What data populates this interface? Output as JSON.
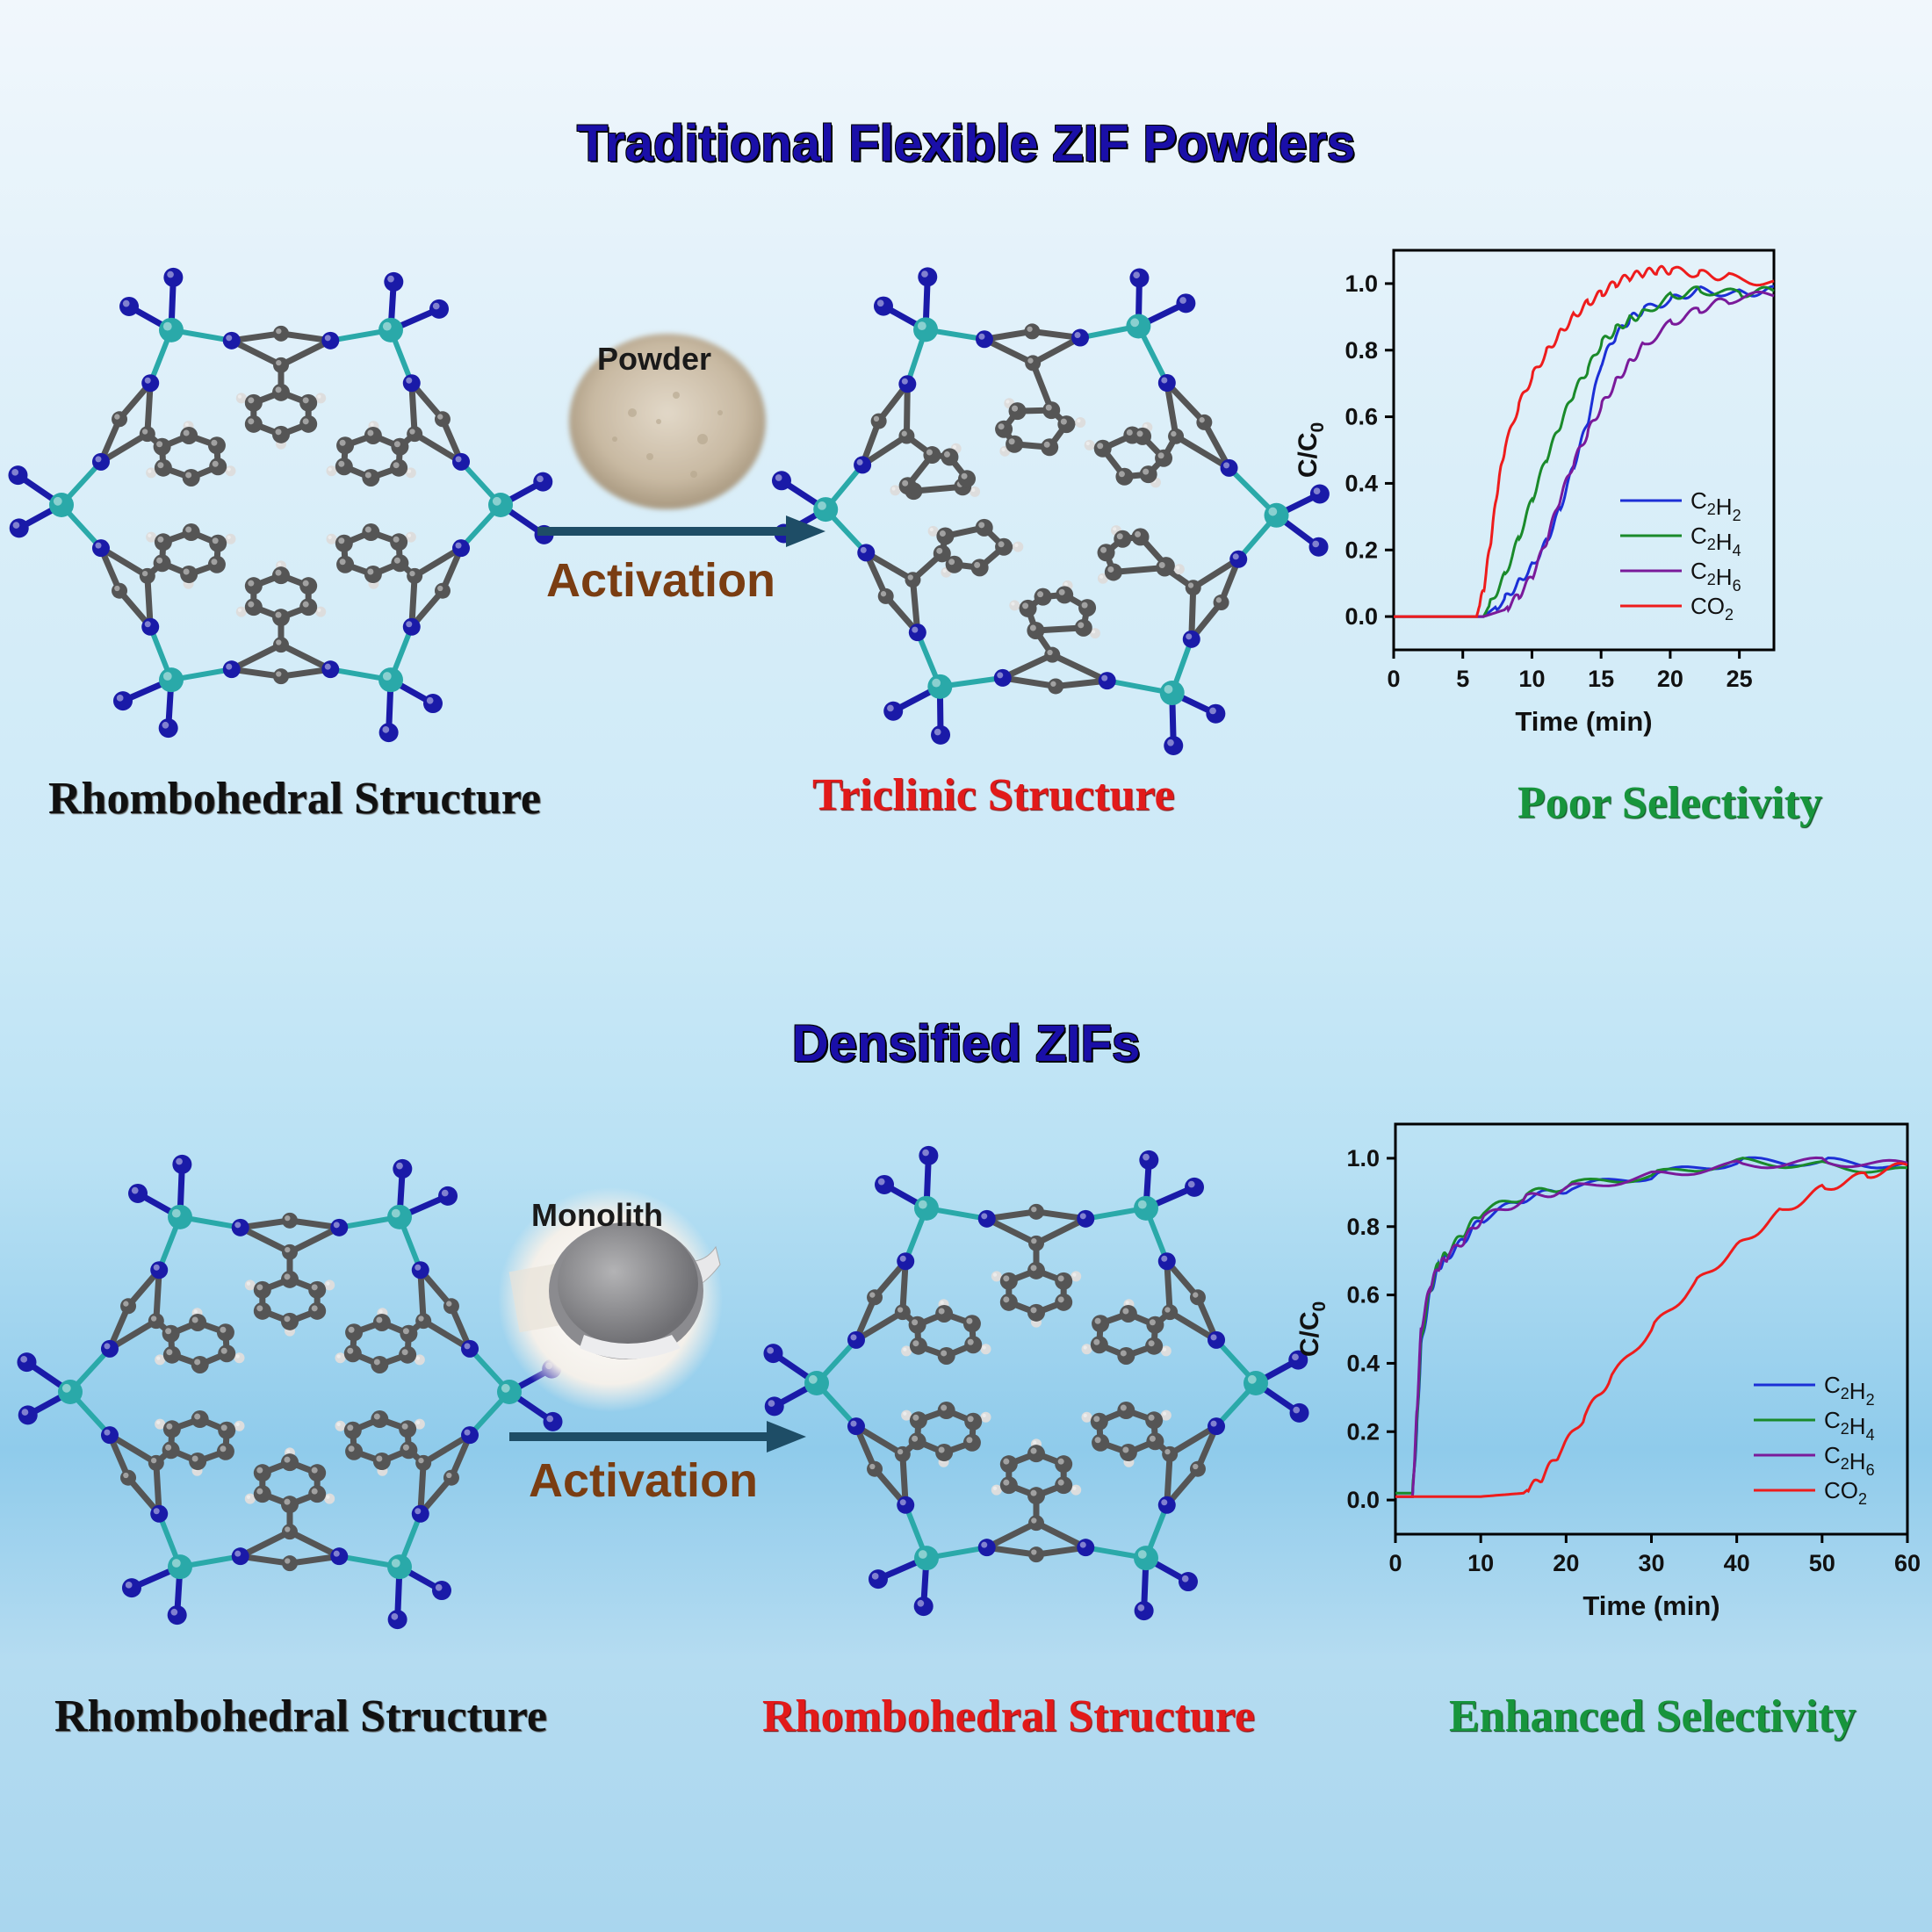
{
  "titles": {
    "top": "Traditional Flexible ZIF Powders",
    "bottom": "Densified ZIFs"
  },
  "top_row": {
    "left_caption": "Rhombohedral Structure",
    "middle_caption": "Triclinic Structure",
    "right_caption": "Poor Selectivity",
    "arrow_label": "Activation",
    "image_label": "Powder"
  },
  "bottom_row": {
    "left_caption": "Rhombohedral Structure",
    "middle_caption": "Rhombohedral Structure",
    "right_caption": "Enhanced Selectivity",
    "arrow_label": "Activation",
    "image_label": "Monolith"
  },
  "colors": {
    "title_blue": "#1a0fa8",
    "zn": "#2aa9a9",
    "n": "#1a1aa8",
    "c": "#555555",
    "h": "#dddddd",
    "arrow": "#1e4d66"
  },
  "chart_data": [
    {
      "type": "line",
      "xlabel": "Time (min)",
      "ylabel": "C/C0",
      "xlim": [
        0,
        27.5
      ],
      "ylim": [
        -0.1,
        1.1
      ],
      "xticks": [
        0,
        5,
        10,
        15,
        20,
        25
      ],
      "yticks": [
        0.0,
        0.2,
        0.4,
        0.6,
        0.8,
        1.0
      ],
      "legend_position": "bottom-right",
      "series": [
        {
          "name": "C2H2",
          "color": "#1c2fd6",
          "x": [
            0,
            6.5,
            8,
            9,
            10,
            11,
            12,
            13,
            14,
            15,
            16,
            17,
            18,
            20,
            22,
            25,
            27.5
          ],
          "y": [
            0,
            0,
            0.05,
            0.1,
            0.15,
            0.22,
            0.32,
            0.45,
            0.58,
            0.76,
            0.84,
            0.89,
            0.92,
            0.95,
            0.98,
            0.97,
            0.98
          ]
        },
        {
          "name": "C2H4",
          "color": "#1a8a2a",
          "x": [
            0,
            6.5,
            7,
            8,
            9,
            10,
            11,
            12,
            13,
            14,
            15,
            16,
            17,
            18,
            20,
            22,
            25,
            27.5
          ],
          "y": [
            0,
            0,
            0.04,
            0.12,
            0.23,
            0.35,
            0.47,
            0.57,
            0.67,
            0.74,
            0.82,
            0.86,
            0.89,
            0.91,
            0.96,
            0.98,
            0.97,
            0.98
          ]
        },
        {
          "name": "C2H6",
          "color": "#7a1a9a",
          "x": [
            0,
            6.5,
            8,
            9,
            10,
            11,
            12,
            13,
            14,
            15,
            16,
            17,
            18,
            20,
            22,
            24,
            27.5
          ],
          "y": [
            0,
            0,
            0.02,
            0.06,
            0.12,
            0.22,
            0.35,
            0.46,
            0.55,
            0.63,
            0.7,
            0.76,
            0.81,
            0.88,
            0.92,
            0.95,
            0.97
          ]
        },
        {
          "name": "CO2",
          "color": "#ee1c1c",
          "x": [
            0,
            6,
            6.5,
            7,
            7.5,
            8,
            9,
            10,
            11,
            12,
            13,
            14,
            15,
            16,
            17,
            18,
            19,
            20,
            22,
            24,
            27.5
          ],
          "y": [
            0,
            0,
            0.08,
            0.22,
            0.38,
            0.5,
            0.63,
            0.72,
            0.79,
            0.85,
            0.9,
            0.94,
            0.97,
            1.0,
            1.02,
            1.03,
            1.04,
            1.04,
            1.03,
            1.02,
            1.0
          ]
        }
      ]
    },
    {
      "type": "line",
      "xlabel": "Time (min)",
      "ylabel": "C/C0",
      "xlim": [
        0,
        60
      ],
      "ylim": [
        -0.1,
        1.1
      ],
      "xticks": [
        0,
        10,
        20,
        30,
        40,
        50,
        60
      ],
      "yticks": [
        0.0,
        0.2,
        0.4,
        0.6,
        0.8,
        1.0
      ],
      "legend_position": "bottom-right",
      "series": [
        {
          "name": "C2H2",
          "color": "#1c2fd6",
          "x": [
            0,
            2,
            2.5,
            3,
            4,
            5,
            6,
            8,
            10,
            15,
            20,
            30,
            40,
            50,
            60
          ],
          "y": [
            0.01,
            0.01,
            0.2,
            0.45,
            0.6,
            0.68,
            0.71,
            0.76,
            0.82,
            0.88,
            0.91,
            0.95,
            0.99,
            0.99,
            0.98
          ]
        },
        {
          "name": "C2H4",
          "color": "#1a8a2a",
          "x": [
            0,
            2,
            2.5,
            3,
            4,
            5,
            6,
            8,
            10,
            15,
            20,
            30,
            40,
            50,
            60
          ],
          "y": [
            0.02,
            0.02,
            0.22,
            0.47,
            0.61,
            0.69,
            0.72,
            0.78,
            0.84,
            0.89,
            0.92,
            0.95,
            0.99,
            0.98,
            0.96
          ]
        },
        {
          "name": "C2H6",
          "color": "#7a1a9a",
          "x": [
            0,
            2,
            2.5,
            3,
            4,
            5,
            6,
            8,
            10,
            15,
            20,
            30,
            40,
            50,
            60
          ],
          "y": [
            0.01,
            0.01,
            0.25,
            0.5,
            0.62,
            0.68,
            0.71,
            0.76,
            0.82,
            0.88,
            0.91,
            0.95,
            0.98,
            0.99,
            0.98
          ]
        },
        {
          "name": "CO2",
          "color": "#ee1c1c",
          "x": [
            0,
            10,
            15,
            17,
            19,
            22,
            25,
            30,
            35,
            40,
            45,
            50,
            55,
            60
          ],
          "y": [
            0.01,
            0.01,
            0.02,
            0.06,
            0.13,
            0.24,
            0.35,
            0.5,
            0.63,
            0.74,
            0.84,
            0.91,
            0.95,
            0.98
          ]
        }
      ]
    }
  ]
}
